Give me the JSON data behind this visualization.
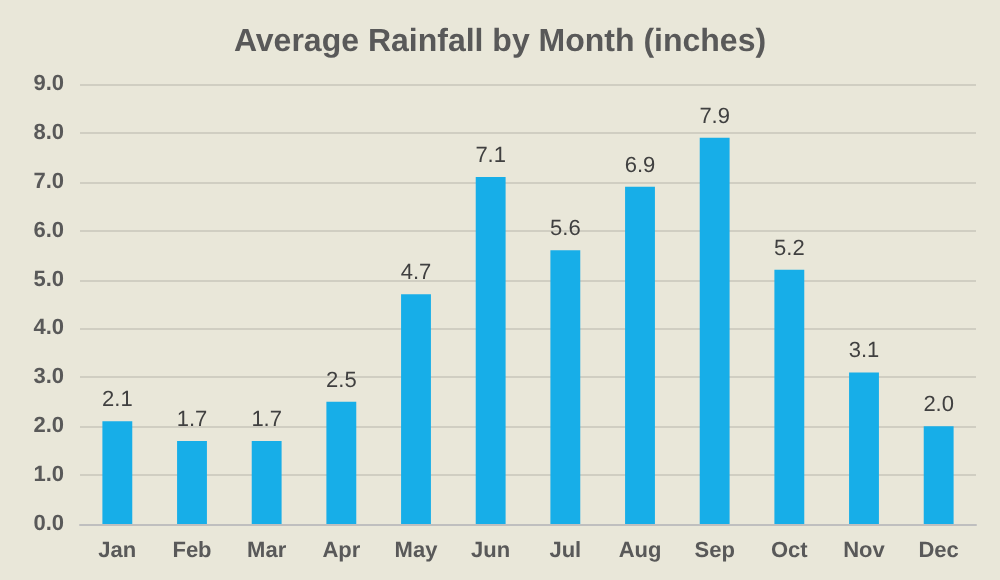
{
  "chart_data": {
    "type": "bar",
    "title": "Average Rainfall by Month (inches)",
    "categories": [
      "Jan",
      "Feb",
      "Mar",
      "Apr",
      "May",
      "Jun",
      "Jul",
      "Aug",
      "Sep",
      "Oct",
      "Nov",
      "Dec"
    ],
    "values": [
      2.1,
      1.7,
      1.7,
      2.5,
      4.7,
      7.1,
      5.6,
      6.9,
      7.9,
      5.2,
      3.1,
      2.0
    ],
    "color": "#17aee8",
    "ylim": [
      0,
      9
    ],
    "yticks": [
      {
        "value": 0,
        "label": "0.0"
      },
      {
        "value": 1,
        "label": "1.0"
      },
      {
        "value": 2,
        "label": "2.0"
      },
      {
        "value": 3,
        "label": "3.0"
      },
      {
        "value": 4,
        "label": "4.0"
      },
      {
        "value": 5,
        "label": "5.0"
      },
      {
        "value": 6,
        "label": "6.0"
      },
      {
        "value": 7,
        "label": "7.0"
      },
      {
        "value": 8,
        "label": "8.0"
      },
      {
        "value": 9,
        "label": "9.0"
      }
    ],
    "value_labels": [
      "2.1",
      "1.7",
      "1.7",
      "2.5",
      "4.7",
      "7.1",
      "5.6",
      "6.9",
      "7.9",
      "5.2",
      "3.1",
      "2.0"
    ],
    "grid": true
  }
}
